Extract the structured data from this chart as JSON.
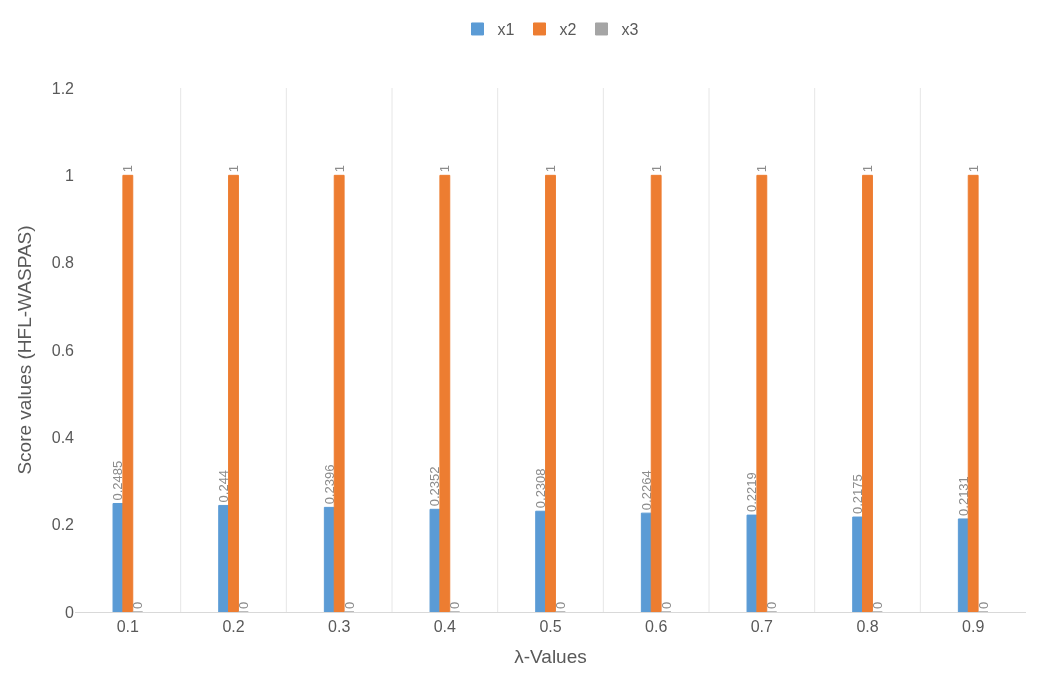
{
  "chart_data": {
    "type": "bar",
    "xlabel": "λ-Values",
    "ylabel": "Score values (HFL-WASPAS)",
    "categories": [
      "0.1",
      "0.2",
      "0.3",
      "0.4",
      "0.5",
      "0.6",
      "0.7",
      "0.8",
      "0.9"
    ],
    "series": [
      {
        "name": "x1",
        "color": "#5b9bd5",
        "values": [
          0.2485,
          0.244,
          0.2396,
          0.2352,
          0.2308,
          0.2264,
          0.2219,
          0.2175,
          0.2131
        ]
      },
      {
        "name": "x2",
        "color": "#ed7d31",
        "values": [
          1,
          1,
          1,
          1,
          1,
          1,
          1,
          1,
          1
        ]
      },
      {
        "name": "x3",
        "color": "#a5a5a5",
        "values": [
          0,
          0,
          0,
          0,
          0,
          0,
          0,
          0,
          0
        ]
      }
    ],
    "ylim": [
      0,
      1.2
    ],
    "yticks": [
      0,
      0.2,
      0.4,
      0.6,
      0.8,
      1,
      1.2
    ],
    "data_labels": true,
    "grid": "x",
    "legend": "top"
  }
}
